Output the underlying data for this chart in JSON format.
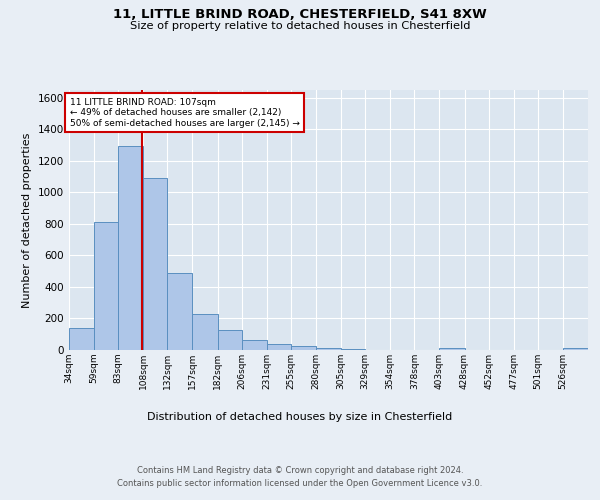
{
  "title_line1": "11, LITTLE BRIND ROAD, CHESTERFIELD, S41 8XW",
  "title_line2": "Size of property relative to detached houses in Chesterfield",
  "xlabel": "Distribution of detached houses by size in Chesterfield",
  "ylabel": "Number of detached properties",
  "bar_color": "#aec6e8",
  "bar_edge_color": "#5a8fc0",
  "marker_color": "#cc0000",
  "marker_value": 107,
  "categories": [
    "34sqm",
    "59sqm",
    "83sqm",
    "108sqm",
    "132sqm",
    "157sqm",
    "182sqm",
    "206sqm",
    "231sqm",
    "255sqm",
    "280sqm",
    "305sqm",
    "329sqm",
    "354sqm",
    "378sqm",
    "403sqm",
    "428sqm",
    "452sqm",
    "477sqm",
    "501sqm",
    "526sqm"
  ],
  "bin_edges": [
    34,
    59,
    83,
    108,
    132,
    157,
    182,
    206,
    231,
    255,
    280,
    305,
    329,
    354,
    378,
    403,
    428,
    452,
    477,
    501,
    526,
    551
  ],
  "values": [
    140,
    815,
    1295,
    1090,
    490,
    230,
    130,
    65,
    38,
    25,
    15,
    5,
    0,
    0,
    0,
    10,
    0,
    0,
    0,
    0,
    10
  ],
  "ylim": [
    0,
    1650
  ],
  "yticks": [
    0,
    200,
    400,
    600,
    800,
    1000,
    1200,
    1400,
    1600
  ],
  "annotation_text": "11 LITTLE BRIND ROAD: 107sqm\n← 49% of detached houses are smaller (2,142)\n50% of semi-detached houses are larger (2,145) →",
  "footer_line1": "Contains HM Land Registry data © Crown copyright and database right 2024.",
  "footer_line2": "Contains public sector information licensed under the Open Government Licence v3.0.",
  "background_color": "#e8eef5",
  "plot_bg_color": "#dce6f0"
}
